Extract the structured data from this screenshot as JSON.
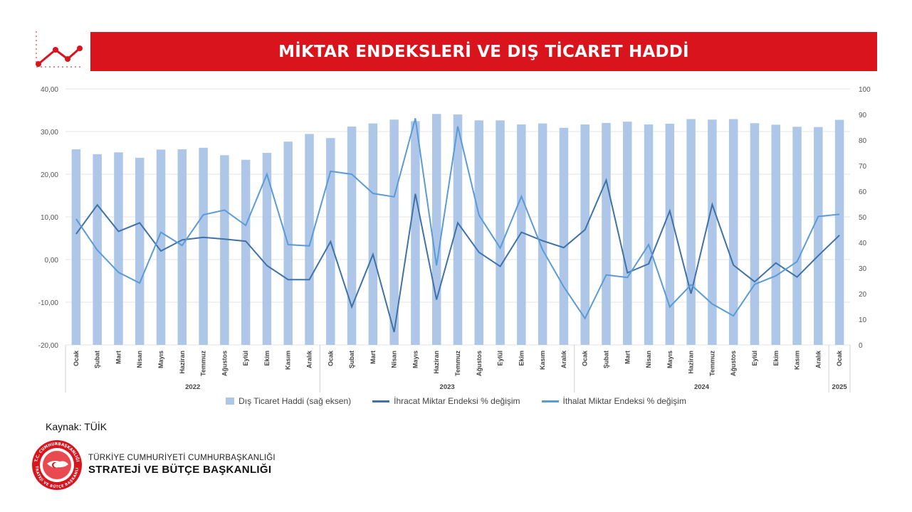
{
  "header": {
    "title": "MİKTAR ENDEKSLERİ VE DIŞ TİCARET HADDİ"
  },
  "chart_data": {
    "type": "bar",
    "categories": [
      "Ocak",
      "Şubat",
      "Mart",
      "Nisan",
      "Mayıs",
      "Haziran",
      "Temmuz",
      "Ağustos",
      "Eylül",
      "Ekim",
      "Kasım",
      "Aralık",
      "Ocak",
      "Şubat",
      "Mart",
      "Nisan",
      "Mayıs",
      "Haziran",
      "Temmuz",
      "Ağustos",
      "Eylül",
      "Ekim",
      "Kasım",
      "Aralık",
      "Ocak",
      "Şubat",
      "Mart",
      "Nisan",
      "Mayıs",
      "Haziran",
      "Temmuz",
      "Ağustos",
      "Eylül",
      "Ekim",
      "Kasım",
      "Aralık",
      "Ocak"
    ],
    "year_groups": [
      {
        "label": "2022",
        "start": 0,
        "end": 11
      },
      {
        "label": "2023",
        "start": 12,
        "end": 23
      },
      {
        "label": "2024",
        "start": 24,
        "end": 35
      },
      {
        "label": "2025",
        "start": 36,
        "end": 36
      }
    ],
    "left_axis": {
      "min": -20,
      "max": 40,
      "step": 10,
      "ticks": [
        "-20,00",
        "-10,00",
        "0,00",
        "10,00",
        "20,00",
        "30,00",
        "40,00"
      ]
    },
    "right_axis": {
      "min": 0,
      "max": 100,
      "step": 10,
      "ticks": [
        "0",
        "10",
        "20",
        "30",
        "40",
        "50",
        "60",
        "70",
        "80",
        "90",
        "100"
      ]
    },
    "series": [
      {
        "name": "Dış Ticaret Haddi (sağ eksen)",
        "type": "bar",
        "axis": "right",
        "color": "#aec7e8",
        "values": [
          76.4,
          74.5,
          75.2,
          73.1,
          76.3,
          76.4,
          77.0,
          74.1,
          72.3,
          75.0,
          79.4,
          82.4,
          80.8,
          85.3,
          86.5,
          88.0,
          87.4,
          90.2,
          90.0,
          87.7,
          87.7,
          86.1,
          86.5,
          84.8,
          86.1,
          86.7,
          87.2,
          86.1,
          86.4,
          88.2,
          88.0,
          88.2,
          86.6,
          86.0,
          85.2,
          85.1,
          87.9
        ]
      },
      {
        "name": "İhracat Miktar Endeksi % değişim",
        "type": "line",
        "axis": "left",
        "color": "#3f72a8",
        "values": [
          6.0,
          12.8,
          6.6,
          8.6,
          2.0,
          4.6,
          5.2,
          4.8,
          4.3,
          -1.4,
          -4.7,
          -4.7,
          4.2,
          -11.1,
          1.2,
          -17.0,
          15.4,
          -9.4,
          8.6,
          1.7,
          -1.6,
          6.4,
          4.4,
          2.8,
          7.0,
          18.6,
          -3.1,
          -1.0,
          11.4,
          -8.0,
          12.9,
          -1.3,
          -5.2,
          -0.8,
          -4.1,
          0.9,
          5.7
        ]
      },
      {
        "name": "İthalat Miktar Endeksi % değişim",
        "type": "line",
        "axis": "left",
        "color": "#5b9bd5",
        "values": [
          9.5,
          2.2,
          -3.0,
          -5.5,
          6.4,
          3.3,
          10.5,
          11.6,
          8.0,
          20.0,
          3.5,
          3.2,
          20.7,
          20.0,
          15.5,
          14.7,
          33.1,
          -1.4,
          31.2,
          10.4,
          2.7,
          14.8,
          2.3,
          -6.4,
          -13.8,
          -3.6,
          -4.2,
          3.5,
          -11.1,
          -5.9,
          -10.4,
          -13.2,
          -5.8,
          -3.8,
          -0.5,
          10.1,
          10.6
        ]
      }
    ]
  },
  "footer": {
    "source": "Kaynak: TÜİK",
    "org_line1": "TÜRKİYE CUMHURİYETİ CUMHURBAŞKANLIĞI",
    "org_line2": "STRATEJİ VE BÜTÇE BAŞKANLIĞI",
    "seal_text_top": "T.C. CUMHURBAŞKANLIĞI",
    "seal_text_bottom": "STRATEJİ VE BÜTÇE BAŞKANLIĞI"
  },
  "colors": {
    "brand_red": "#d9141c",
    "bar": "#aec7e8",
    "export_line": "#3f72a8",
    "import_line": "#5b9bd5"
  }
}
